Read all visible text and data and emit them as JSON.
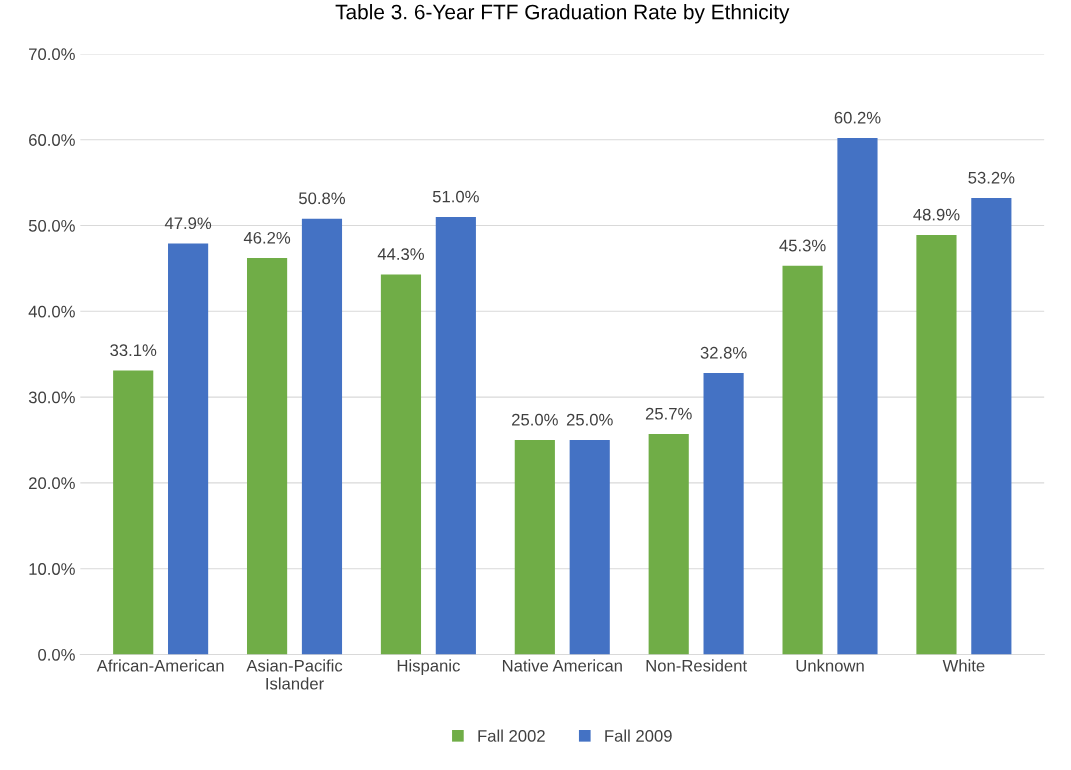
{
  "chart_data": {
    "type": "bar",
    "title": "Table 3. 6-Year FTF Graduation Rate by Ethnicity",
    "categories": [
      "African-American",
      "Asian-Pacific\nIslander",
      "Hispanic",
      "Native American",
      "Non-Resident",
      "Unknown",
      "White"
    ],
    "series": [
      {
        "name": "Fall 2002",
        "color": "#70ad47",
        "values": [
          33.1,
          46.2,
          44.3,
          25.0,
          25.7,
          45.3,
          48.9
        ],
        "value_labels": [
          "33.1%",
          "46.2%",
          "44.3%",
          "25.0%",
          "25.7%",
          "45.3%",
          "48.9%"
        ]
      },
      {
        "name": "Fall 2009",
        "color": "#4472c4",
        "values": [
          47.9,
          50.8,
          51.0,
          25.0,
          32.8,
          60.2,
          53.2
        ],
        "value_labels": [
          "47.9%",
          "50.8%",
          "51.0%",
          "25.0%",
          "32.8%",
          "60.2%",
          "53.2%"
        ]
      }
    ],
    "ylim": [
      0,
      70
    ],
    "yticks": [
      {
        "value": 0,
        "label": "0.0%"
      },
      {
        "value": 10,
        "label": "10.0%"
      },
      {
        "value": 20,
        "label": "20.0%"
      },
      {
        "value": 30,
        "label": "30.0%"
      },
      {
        "value": 40,
        "label": "40.0%"
      },
      {
        "value": 50,
        "label": "50.0%"
      },
      {
        "value": 60,
        "label": "60.0%"
      },
      {
        "value": 70,
        "label": "70.0%"
      }
    ],
    "grid": "y",
    "legend": "bottom"
  }
}
